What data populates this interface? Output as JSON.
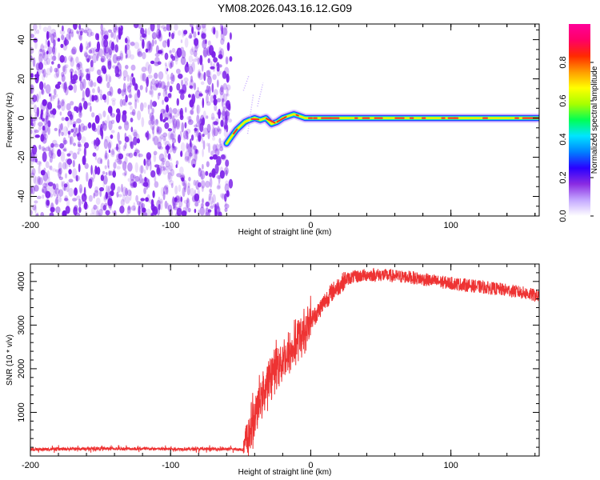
{
  "title": "YM08.2026.043.16.12.G09",
  "chart_data": [
    {
      "type": "heatmap",
      "name": "spectrogram",
      "xlabel": "Height of straight line (km)",
      "ylabel": "Frequency (Hz)",
      "xlim": [
        -200,
        163
      ],
      "ylim": [
        -50,
        48
      ],
      "xticks": [
        -200,
        -100,
        0,
        100
      ],
      "yticks": [
        -40,
        -20,
        0,
        20,
        40
      ],
      "noise_region_x": [
        -200,
        -57
      ],
      "noise_color": "#7b1fe8",
      "signal_track": {
        "x": [
          -60,
          -57,
          -53,
          -50,
          -47,
          -44,
          -40,
          -36,
          -32,
          -28,
          -24,
          -20,
          -16,
          -12,
          -8,
          -4,
          0,
          20,
          40,
          60,
          80,
          100,
          120,
          140,
          163
        ],
        "y": [
          -13,
          -10,
          -6,
          -4,
          -2,
          -1,
          0,
          -1,
          0,
          -3,
          -2,
          0,
          1,
          2,
          1,
          0,
          0,
          0,
          0,
          0,
          0,
          0,
          0,
          0,
          0
        ]
      },
      "colorbar": {
        "label": "Normalized spectral amplitude",
        "range": [
          0,
          1
        ],
        "ticks": [
          "0.0",
          "0.2",
          "0.4",
          "0.6",
          "0.8"
        ],
        "colors": [
          "#ffffff",
          "#c4a8ff",
          "#8a2be2",
          "#2a00ff",
          "#0080ff",
          "#00e5ff",
          "#00ff55",
          "#a8ff00",
          "#ffff00",
          "#ff9c00",
          "#ff2a00",
          "#ff0066",
          "#ff0099"
        ]
      }
    },
    {
      "type": "line",
      "name": "snr",
      "xlabel": "Height of straight line (km)",
      "ylabel": "SNR (10 * v/v)",
      "xlim": [
        -200,
        163
      ],
      "ylim": [
        0,
        4400
      ],
      "xticks": [
        -200,
        -100,
        0,
        100
      ],
      "yticks": [
        1000,
        2000,
        3000,
        4000
      ],
      "color": "#ee3333",
      "profile": {
        "x": [
          -200,
          -150,
          -100,
          -60,
          -48,
          -45,
          -40,
          -36,
          -32,
          -28,
          -24,
          -20,
          -16,
          -12,
          -8,
          -4,
          0,
          5,
          10,
          15,
          20,
          25,
          30,
          40,
          50,
          60,
          70,
          80,
          90,
          100,
          110,
          120,
          130,
          140,
          150,
          160,
          163
        ],
        "y": [
          150,
          170,
          160,
          160,
          150,
          400,
          900,
          1300,
          1600,
          1900,
          2100,
          2200,
          2300,
          2500,
          2700,
          2900,
          3100,
          3300,
          3550,
          3750,
          3900,
          4050,
          4100,
          4150,
          4150,
          4120,
          4100,
          4050,
          4000,
          3960,
          3920,
          3880,
          3840,
          3800,
          3750,
          3680,
          3650
        ]
      }
    }
  ]
}
